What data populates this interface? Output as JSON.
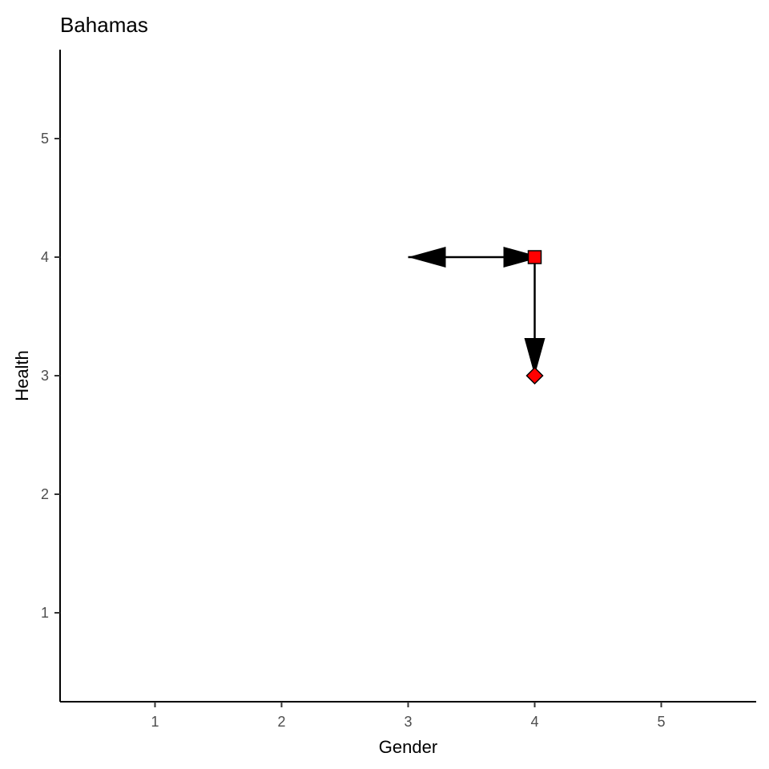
{
  "chart_data": {
    "type": "scatter",
    "title": "Bahamas",
    "xlabel": "Gender",
    "ylabel": "Health",
    "xlim": [
      0.25,
      5.75
    ],
    "ylim": [
      0.25,
      5.75
    ],
    "xticks": [
      1,
      2,
      3,
      4,
      5
    ],
    "yticks": [
      1,
      2,
      3,
      4,
      5
    ],
    "grid": false,
    "points": [
      {
        "shape": "square",
        "x": 4,
        "y": 4,
        "fill": "#ff0000"
      },
      {
        "shape": "diamond",
        "x": 4,
        "y": 3,
        "fill": "#ff0000"
      }
    ],
    "arrows": [
      {
        "from": [
          4,
          4
        ],
        "to": [
          3,
          4
        ],
        "both_ends": true
      },
      {
        "from": [
          4,
          4
        ],
        "to": [
          4,
          3
        ],
        "both_ends": false
      }
    ]
  }
}
